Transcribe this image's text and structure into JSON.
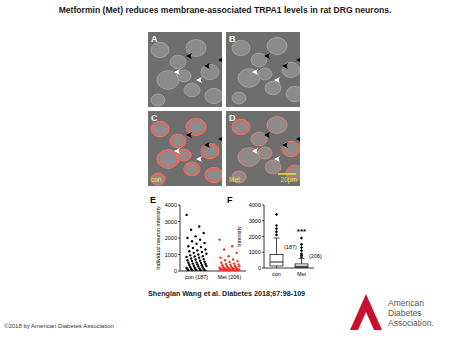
{
  "title": "Metformin (Met) reduces membrane-associated TRPA1 levels in rat DRG neurons.",
  "panels": {
    "image_labels": [
      "A",
      "B",
      "C",
      "D"
    ],
    "condition_labels": [
      "con",
      "Met"
    ],
    "scale_bar": "20μm"
  },
  "chart_data": [
    {
      "panel": "E",
      "type": "strip",
      "categories": [
        "con (187)",
        "Met (206)"
      ],
      "values": [
        [
          3400,
          2700,
          2500,
          2300,
          2100,
          2000,
          1900,
          1800,
          1700,
          1650,
          1500,
          1450,
          1400,
          1300,
          1250,
          1200,
          1150,
          1100,
          1050,
          1000,
          950,
          900,
          880,
          850,
          800,
          760,
          720,
          700,
          650,
          620,
          600,
          560,
          520,
          500,
          480,
          450,
          420,
          400,
          380,
          350,
          320,
          300,
          280,
          250,
          230,
          200,
          180,
          160,
          140,
          120,
          100,
          90,
          80,
          60,
          50,
          40,
          30,
          20,
          10,
          5
        ],
        [
          1900,
          1500,
          1300,
          1100,
          900,
          800,
          700,
          650,
          600,
          550,
          500,
          450,
          420,
          400,
          380,
          350,
          320,
          300,
          280,
          260,
          250,
          240,
          220,
          200,
          190,
          180,
          170,
          160,
          150,
          140,
          130,
          120,
          110,
          100,
          95,
          90,
          85,
          80,
          75,
          70,
          65,
          60,
          55,
          50,
          45,
          40,
          35,
          30,
          25,
          20,
          18,
          15,
          12,
          10,
          8,
          6,
          5,
          3,
          2,
          1
        ]
      ],
      "colors": [
        "#000000",
        "#e8352b"
      ],
      "y_label": "Individual neuron intensity",
      "ylim": [
        0,
        4000
      ],
      "yticks": [
        0,
        1000,
        2000,
        3000,
        4000
      ]
    },
    {
      "panel": "F",
      "type": "box",
      "categories": [
        "con",
        "Met"
      ],
      "min": [
        0,
        0
      ],
      "q1": [
        130,
        40
      ],
      "median": [
        380,
        110
      ],
      "q3": [
        850,
        260
      ],
      "max": [
        1900,
        600
      ],
      "outliers": [
        [
          2100,
          2300,
          2500,
          2700,
          3400
        ],
        [
          700,
          800,
          900,
          1100,
          1300,
          1500,
          1900
        ]
      ],
      "n_labels": [
        "(187)",
        "(206)"
      ],
      "significance": [
        null,
        "***"
      ],
      "y_label": "Intensity",
      "ylim": [
        0,
        4000
      ],
      "yticks": [
        0,
        1000,
        2000,
        3000,
        4000
      ]
    }
  ],
  "citation": "Shenglan Wang et al. Diabetes 2018;67:98-109",
  "copyright": "©2018 by American Diabetes Association",
  "logo": [
    "American",
    "Diabetes",
    "Association."
  ]
}
